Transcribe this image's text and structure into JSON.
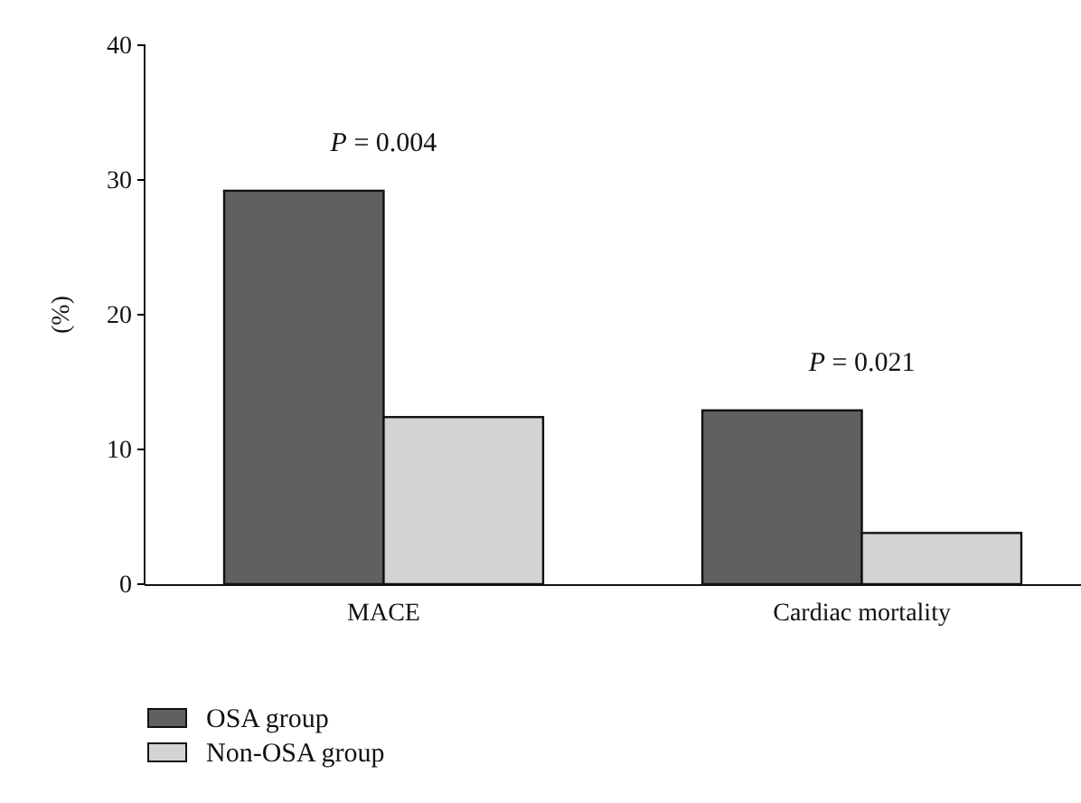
{
  "chart_data": {
    "type": "bar",
    "ylabel": "(%)",
    "categories": [
      "MACE",
      "Cardiac mortality"
    ],
    "series": [
      {
        "name": "OSA group",
        "color": "#5f605f",
        "values": [
          29.2,
          12.9
        ]
      },
      {
        "name": "Non-OSA group",
        "color": "#d3d3d3",
        "values": [
          12.4,
          3.8
        ]
      }
    ],
    "ylim": [
      0,
      40
    ],
    "yticks": [
      0,
      10,
      20,
      30,
      40
    ],
    "grid": false,
    "legend": "bottom left",
    "annotations": [
      "P = 0.004",
      "P = 0.021"
    ]
  }
}
